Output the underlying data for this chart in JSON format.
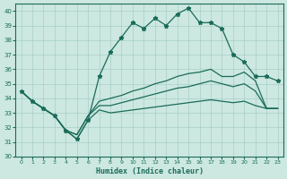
{
  "xlabel": "Humidex (Indice chaleur)",
  "xlim": [
    -0.5,
    23.5
  ],
  "ylim": [
    30,
    40.5
  ],
  "yticks": [
    30,
    31,
    32,
    33,
    34,
    35,
    36,
    37,
    38,
    39,
    40
  ],
  "xticks": [
    0,
    1,
    2,
    3,
    4,
    5,
    6,
    7,
    8,
    9,
    10,
    11,
    12,
    13,
    14,
    15,
    16,
    17,
    18,
    19,
    20,
    21,
    22,
    23
  ],
  "bg_color": "#cce8e0",
  "grid_color": "#a8cfc8",
  "line_color": "#1a6b5a",
  "series": {
    "main": [
      34.5,
      33.8,
      33.3,
      32.8,
      31.8,
      31.2,
      32.5,
      35.5,
      37.2,
      38.2,
      39.2,
      38.8,
      39.5,
      39.0,
      39.8,
      40.2,
      39.2,
      39.2,
      38.8,
      37.0,
      36.5,
      35.5,
      35.5,
      35.2
    ],
    "line2": [
      34.5,
      33.8,
      33.3,
      32.8,
      31.8,
      31.5,
      32.8,
      33.8,
      34.0,
      34.2,
      34.5,
      34.7,
      35.0,
      35.2,
      35.5,
      35.7,
      35.8,
      36.0,
      35.5,
      35.5,
      35.8,
      35.2,
      33.3,
      33.3
    ],
    "line3": [
      34.5,
      33.8,
      33.3,
      32.8,
      31.8,
      31.5,
      32.8,
      33.5,
      33.5,
      33.7,
      33.9,
      34.1,
      34.3,
      34.5,
      34.7,
      34.8,
      35.0,
      35.2,
      35.0,
      34.8,
      35.0,
      34.5,
      33.3,
      33.3
    ],
    "line4": [
      34.5,
      33.8,
      33.3,
      32.8,
      31.8,
      31.2,
      32.5,
      33.2,
      33.0,
      33.1,
      33.2,
      33.3,
      33.4,
      33.5,
      33.6,
      33.7,
      33.8,
      33.9,
      33.8,
      33.7,
      33.8,
      33.5,
      33.3,
      33.3
    ]
  },
  "marker": "*",
  "marker_size": 3.5,
  "linewidth": 0.9
}
